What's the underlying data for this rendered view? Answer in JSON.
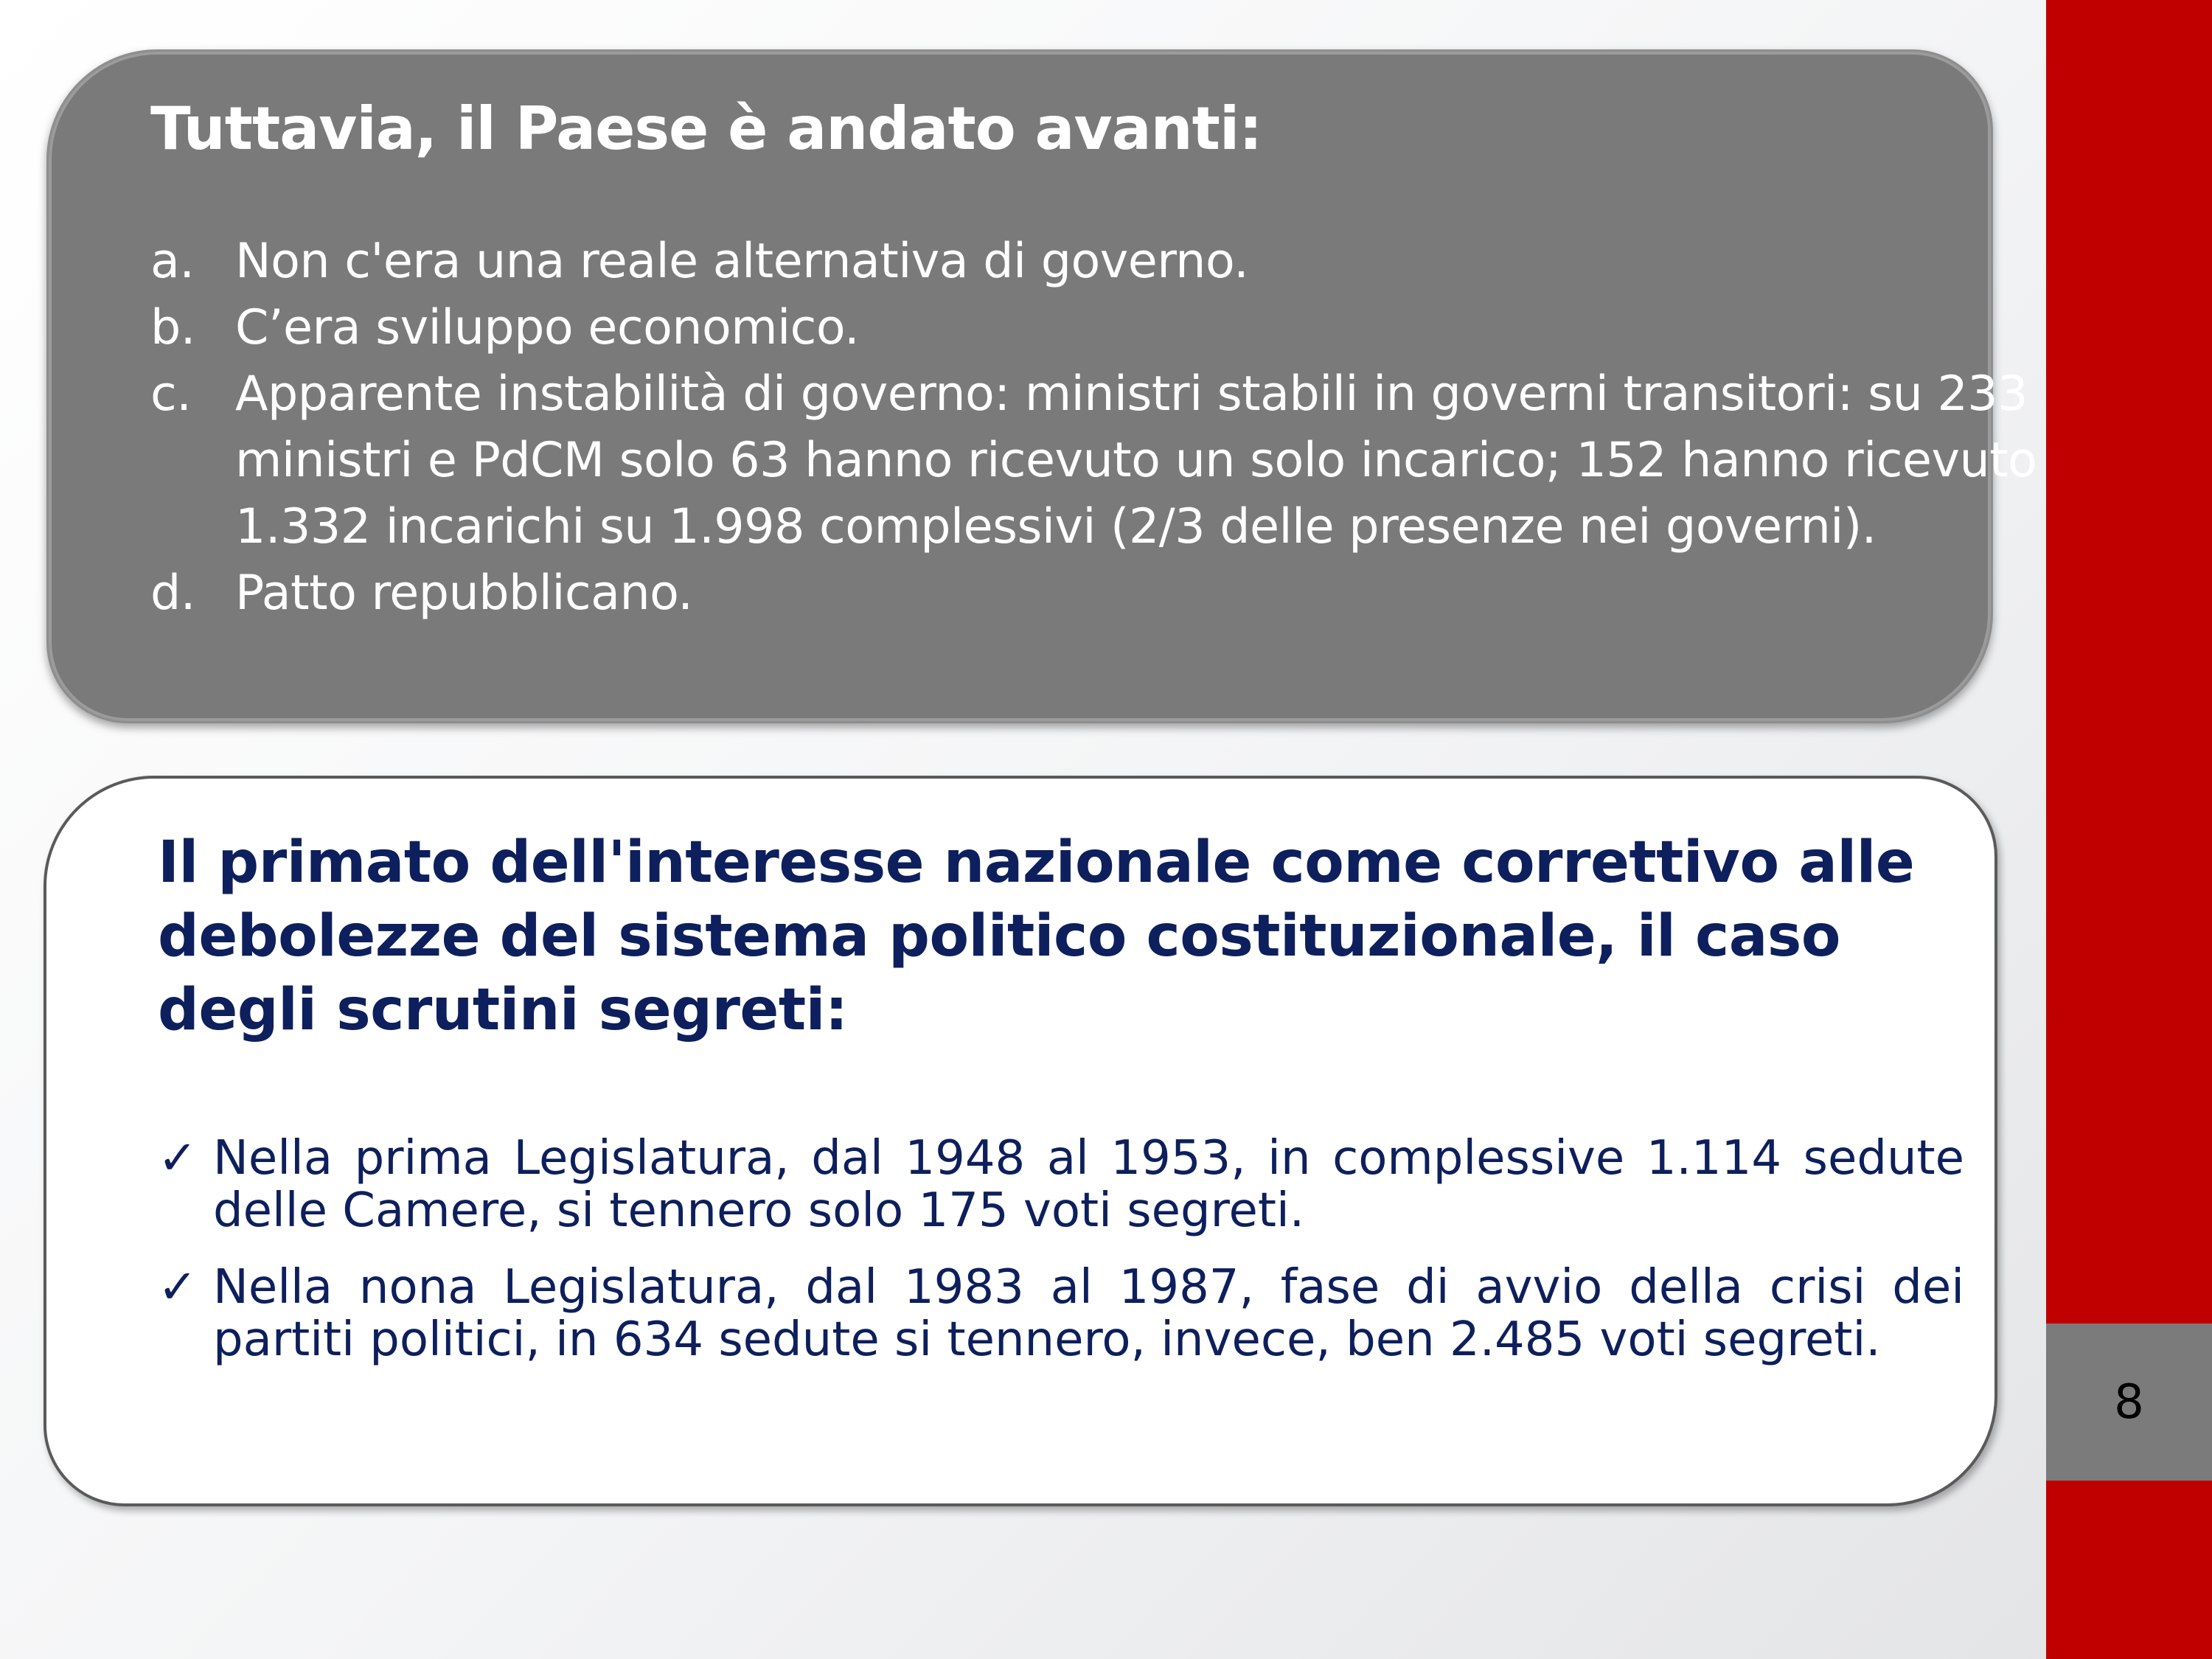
{
  "colors": {
    "accent_red": "#c00000",
    "gray_box": "#7a7a7a",
    "navy_text": "#0d1f5c"
  },
  "top_box": {
    "title": "Tuttavia, il Paese è andato avanti:",
    "items": [
      {
        "marker": "a.",
        "text": "Non c'era una reale alternativa di governo."
      },
      {
        "marker": "b.",
        "text": "C’era sviluppo economico."
      },
      {
        "marker": "c.",
        "text": "Apparente instabilità di governo: ministri stabili in governi transitori: su 233 ministri e PdCM solo 63 hanno ricevuto un solo incarico; 152 hanno ricevuto 1.332 incarichi su 1.998 complessivi (2/3 delle presenze nei governi)."
      },
      {
        "marker": "d.",
        "text": "Patto repubblicano."
      }
    ]
  },
  "bottom_box": {
    "title": "Il primato dell'interesse nazionale come correttivo alle debolezze del sistema politico costituzionale,  il caso degli scrutini segreti:",
    "bullet_icon": "checkmark-icon",
    "bullet_glyph": "✓",
    "items": [
      {
        "text": "Nella prima Legislatura, dal 1948 al 1953, in complessive 1.114 sedute delle Camere, si tennero solo 175 voti segreti."
      },
      {
        "text": " Nella nona Legislatura, dal 1983 al 1987, fase di avvio della crisi dei partiti politici, in 634 sedute si tennero, invece, ben 2.485 voti segreti."
      }
    ]
  },
  "page_number": "8"
}
